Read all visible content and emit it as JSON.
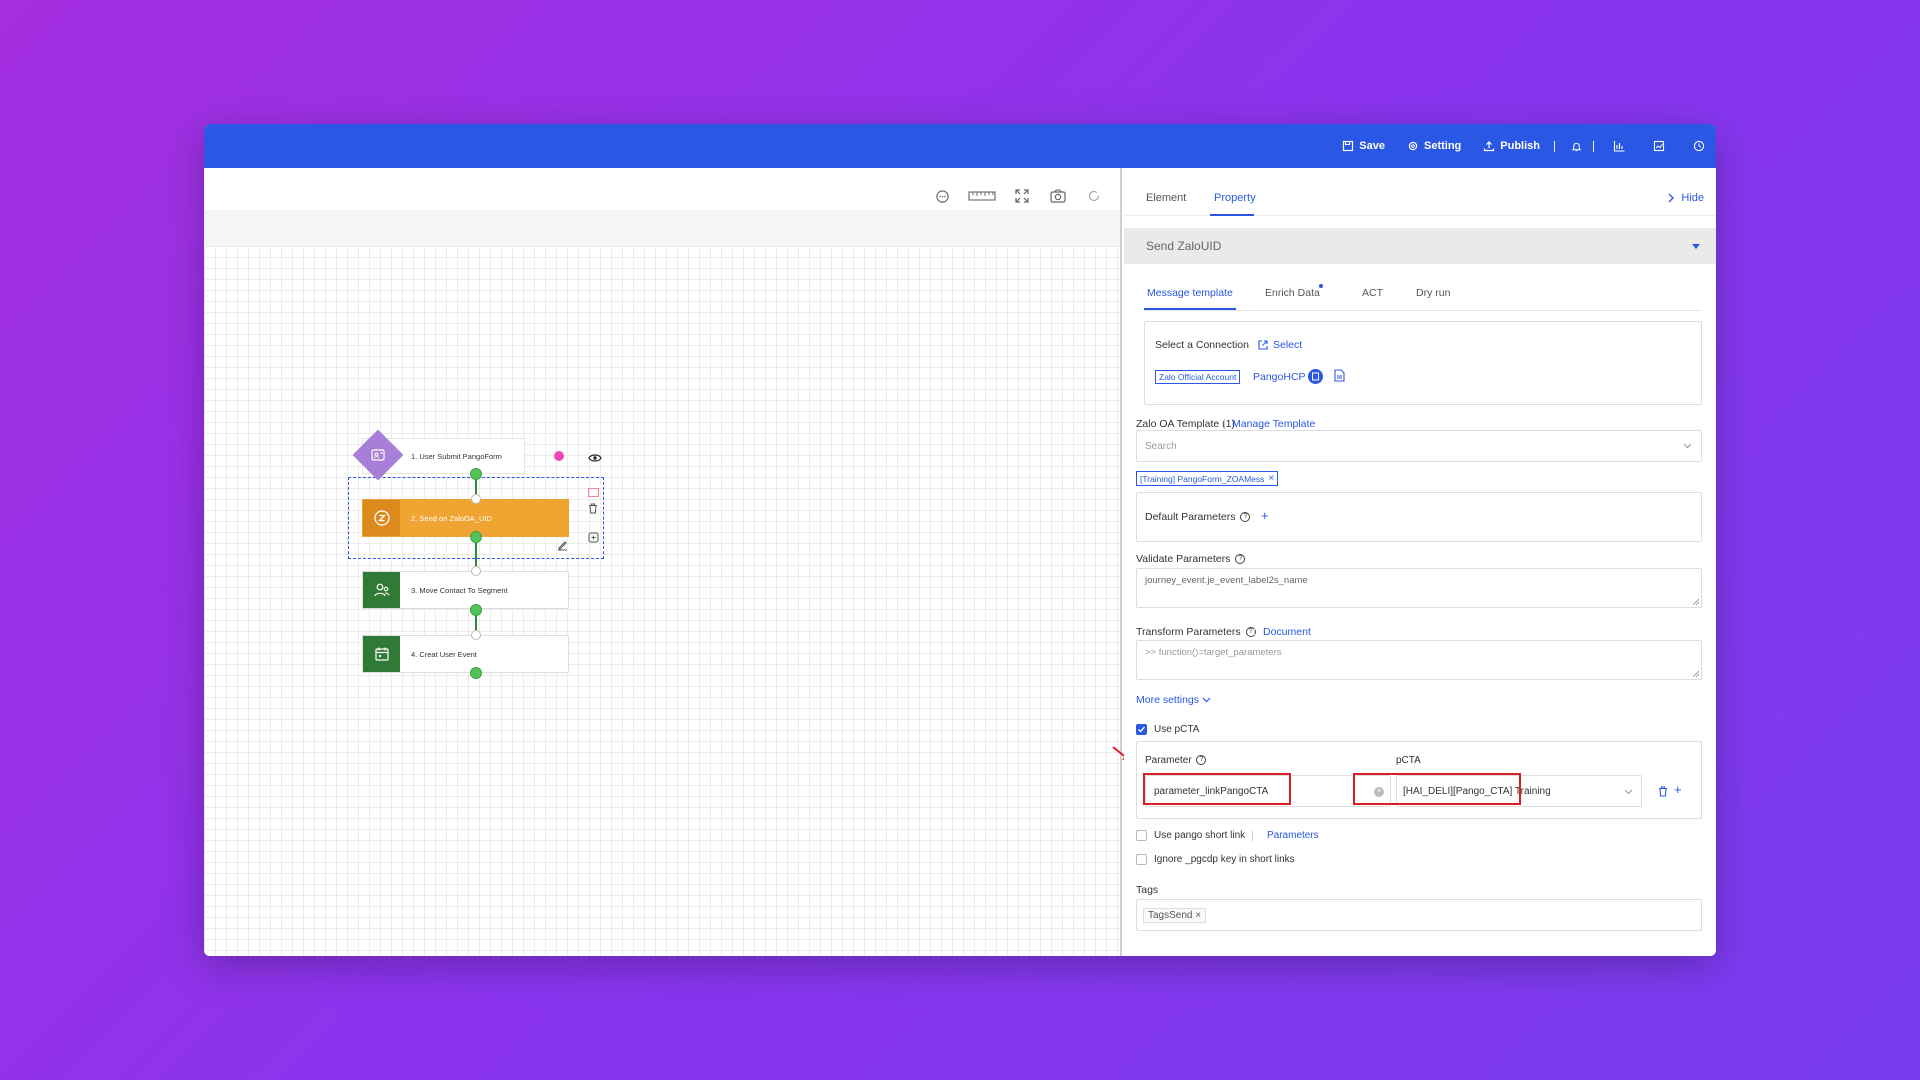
{
  "topbar": {
    "save": "Save",
    "setting": "Setting",
    "publish": "Publish"
  },
  "flow": {
    "nodes": [
      {
        "label": "1. User Submit PangoForm"
      },
      {
        "label": "2. Send on ZaloOA_UID"
      },
      {
        "label": "3. Move Contact To Segment"
      },
      {
        "label": "4. Creat User Event"
      }
    ]
  },
  "panel": {
    "tabs": [
      "Element",
      "Property"
    ],
    "hide": "Hide",
    "section_title": "Send ZaloUID",
    "subtabs": [
      "Message template",
      "Enrich Data",
      "ACT",
      "Dry run"
    ],
    "connection": {
      "label": "Select a Connection",
      "select": "Select",
      "badge": "Zalo Official Account",
      "account": "PangoHCP"
    },
    "template": {
      "label": "Zalo OA Template (1)",
      "manage": "Manage Template",
      "search_placeholder": "Search",
      "selected_tag": "[Training] PangoForm_ZOAMess"
    },
    "default_params": "Default Parameters",
    "validate_params": {
      "label": "Validate Parameters",
      "value": "journey_event.je_event_label2s_name"
    },
    "transform_params": {
      "label": "Transform Parameters",
      "document": "Document",
      "placeholder": ">> function()=target_parameters"
    },
    "more_settings": "More settings",
    "use_pcta": "Use pCTA",
    "pcta_table": {
      "parameter_header": "Parameter",
      "pcta_header": "pCTA",
      "parameter_value": "parameter_linkPangoCTA",
      "pcta_value": "[HAI_DELI][Pango_CTA] Training"
    },
    "short_link": {
      "label": "Use pango short link",
      "parameters": "Parameters"
    },
    "ignore_label": "Ignore _pgcdp key in short links",
    "tags": {
      "label": "Tags",
      "value": "TagsSend"
    }
  },
  "colors": {
    "topbar": "#2a57e4",
    "trigger": "#a87fd8",
    "zalo_node": "#f0a533",
    "green_node": "#2f7a35",
    "highlight": "#d81f26"
  }
}
